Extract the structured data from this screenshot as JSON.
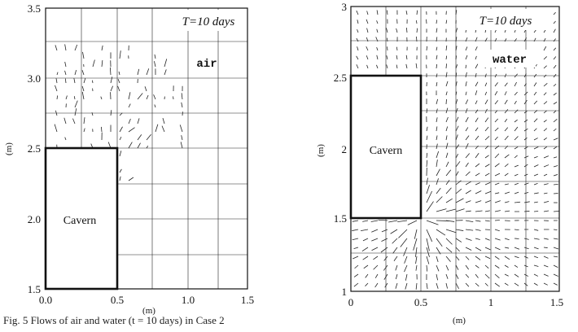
{
  "caption": "Fig. 5 Flows of air and water (t = 10 days) in Case 2",
  "chart_data": [
    {
      "type": "vector-field",
      "panel": "left",
      "time_label": "T=10 days",
      "phase_label": "air",
      "cavern_label": "Cavern",
      "xlabel": "(m)",
      "ylabel": "(m)",
      "xlim": [
        0,
        1.5
      ],
      "ylim": [
        1.5,
        3.5
      ],
      "x_ticks": [
        "0.0",
        "0.5",
        "1.0",
        "1.5"
      ],
      "y_ticks": [
        "1.5",
        "2.0",
        "2.5",
        "3.0",
        "3.5"
      ],
      "cavern": {
        "x": [
          0,
          0.5
        ],
        "y": [
          1.5,
          2.5
        ]
      }
    },
    {
      "type": "vector-field",
      "panel": "right",
      "time_label": "T=10 days",
      "phase_label": "water",
      "cavern_label": "Cavern",
      "xlabel": "(m)",
      "ylabel": "(m)",
      "xlim": [
        0,
        1.5
      ],
      "ylim": [
        1,
        3
      ],
      "x_ticks": [
        "0",
        "0.5",
        "1",
        "1.5"
      ],
      "y_ticks": [
        "1",
        "1.5",
        "2",
        "2.5",
        "3"
      ],
      "cavern": {
        "x": [
          0,
          0.5
        ],
        "y": [
          1.5,
          2.5
        ]
      }
    }
  ]
}
